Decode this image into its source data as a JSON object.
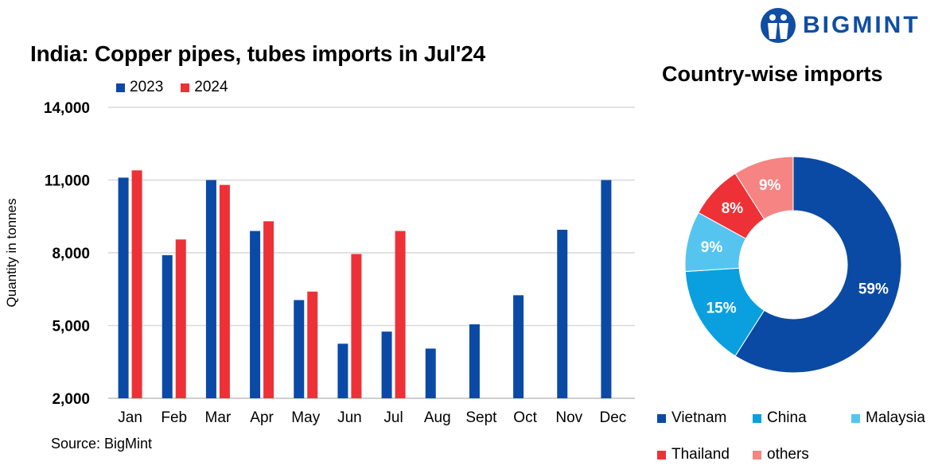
{
  "brand": {
    "name": "BIGMINT",
    "color": "#0f4ea3"
  },
  "chart_data": [
    {
      "type": "bar",
      "title": "India: Copper pipes, tubes imports in Jul'24",
      "ylabel": "Quantity in tonnes",
      "xlabel": "",
      "categories": [
        "Jan",
        "Feb",
        "Mar",
        "Apr",
        "May",
        "Jun",
        "Jul",
        "Aug",
        "Sept",
        "Oct",
        "Nov",
        "Dec"
      ],
      "series": [
        {
          "name": "2023",
          "color": "#0a4aa5",
          "values": [
            11100,
            7900,
            11000,
            8900,
            6050,
            4250,
            4750,
            4050,
            5050,
            6250,
            8950,
            11000
          ]
        },
        {
          "name": "2024",
          "color": "#ee3136",
          "values": [
            11400,
            8550,
            10800,
            9300,
            6400,
            7950,
            8900,
            null,
            null,
            null,
            null,
            null
          ]
        }
      ],
      "ylim": [
        2000,
        14000
      ],
      "yticks": [
        2000,
        5000,
        8000,
        11000,
        14000
      ],
      "ytick_labels": [
        "2,000",
        "5,000",
        "8,000",
        "11,000",
        "14,000"
      ],
      "grid": true,
      "legend_position": "top-left",
      "source": "Source: BigMint"
    },
    {
      "type": "pie",
      "title": "Country-wise imports",
      "donut": true,
      "legend_position": "bottom",
      "slices": [
        {
          "label": "Vietnam",
          "value": 59,
          "value_label": "59%",
          "color": "#0a4aa5"
        },
        {
          "label": "China",
          "value": 15,
          "value_label": "15%",
          "color": "#0aa0e0"
        },
        {
          "label": "Malaysia",
          "value": 9,
          "value_label": "9%",
          "color": "#55c5f0"
        },
        {
          "label": "Thailand",
          "value": 8,
          "value_label": "8%",
          "color": "#ee3136"
        },
        {
          "label": "others",
          "value": 9,
          "value_label": "9%",
          "color": "#f58483"
        }
      ]
    }
  ]
}
